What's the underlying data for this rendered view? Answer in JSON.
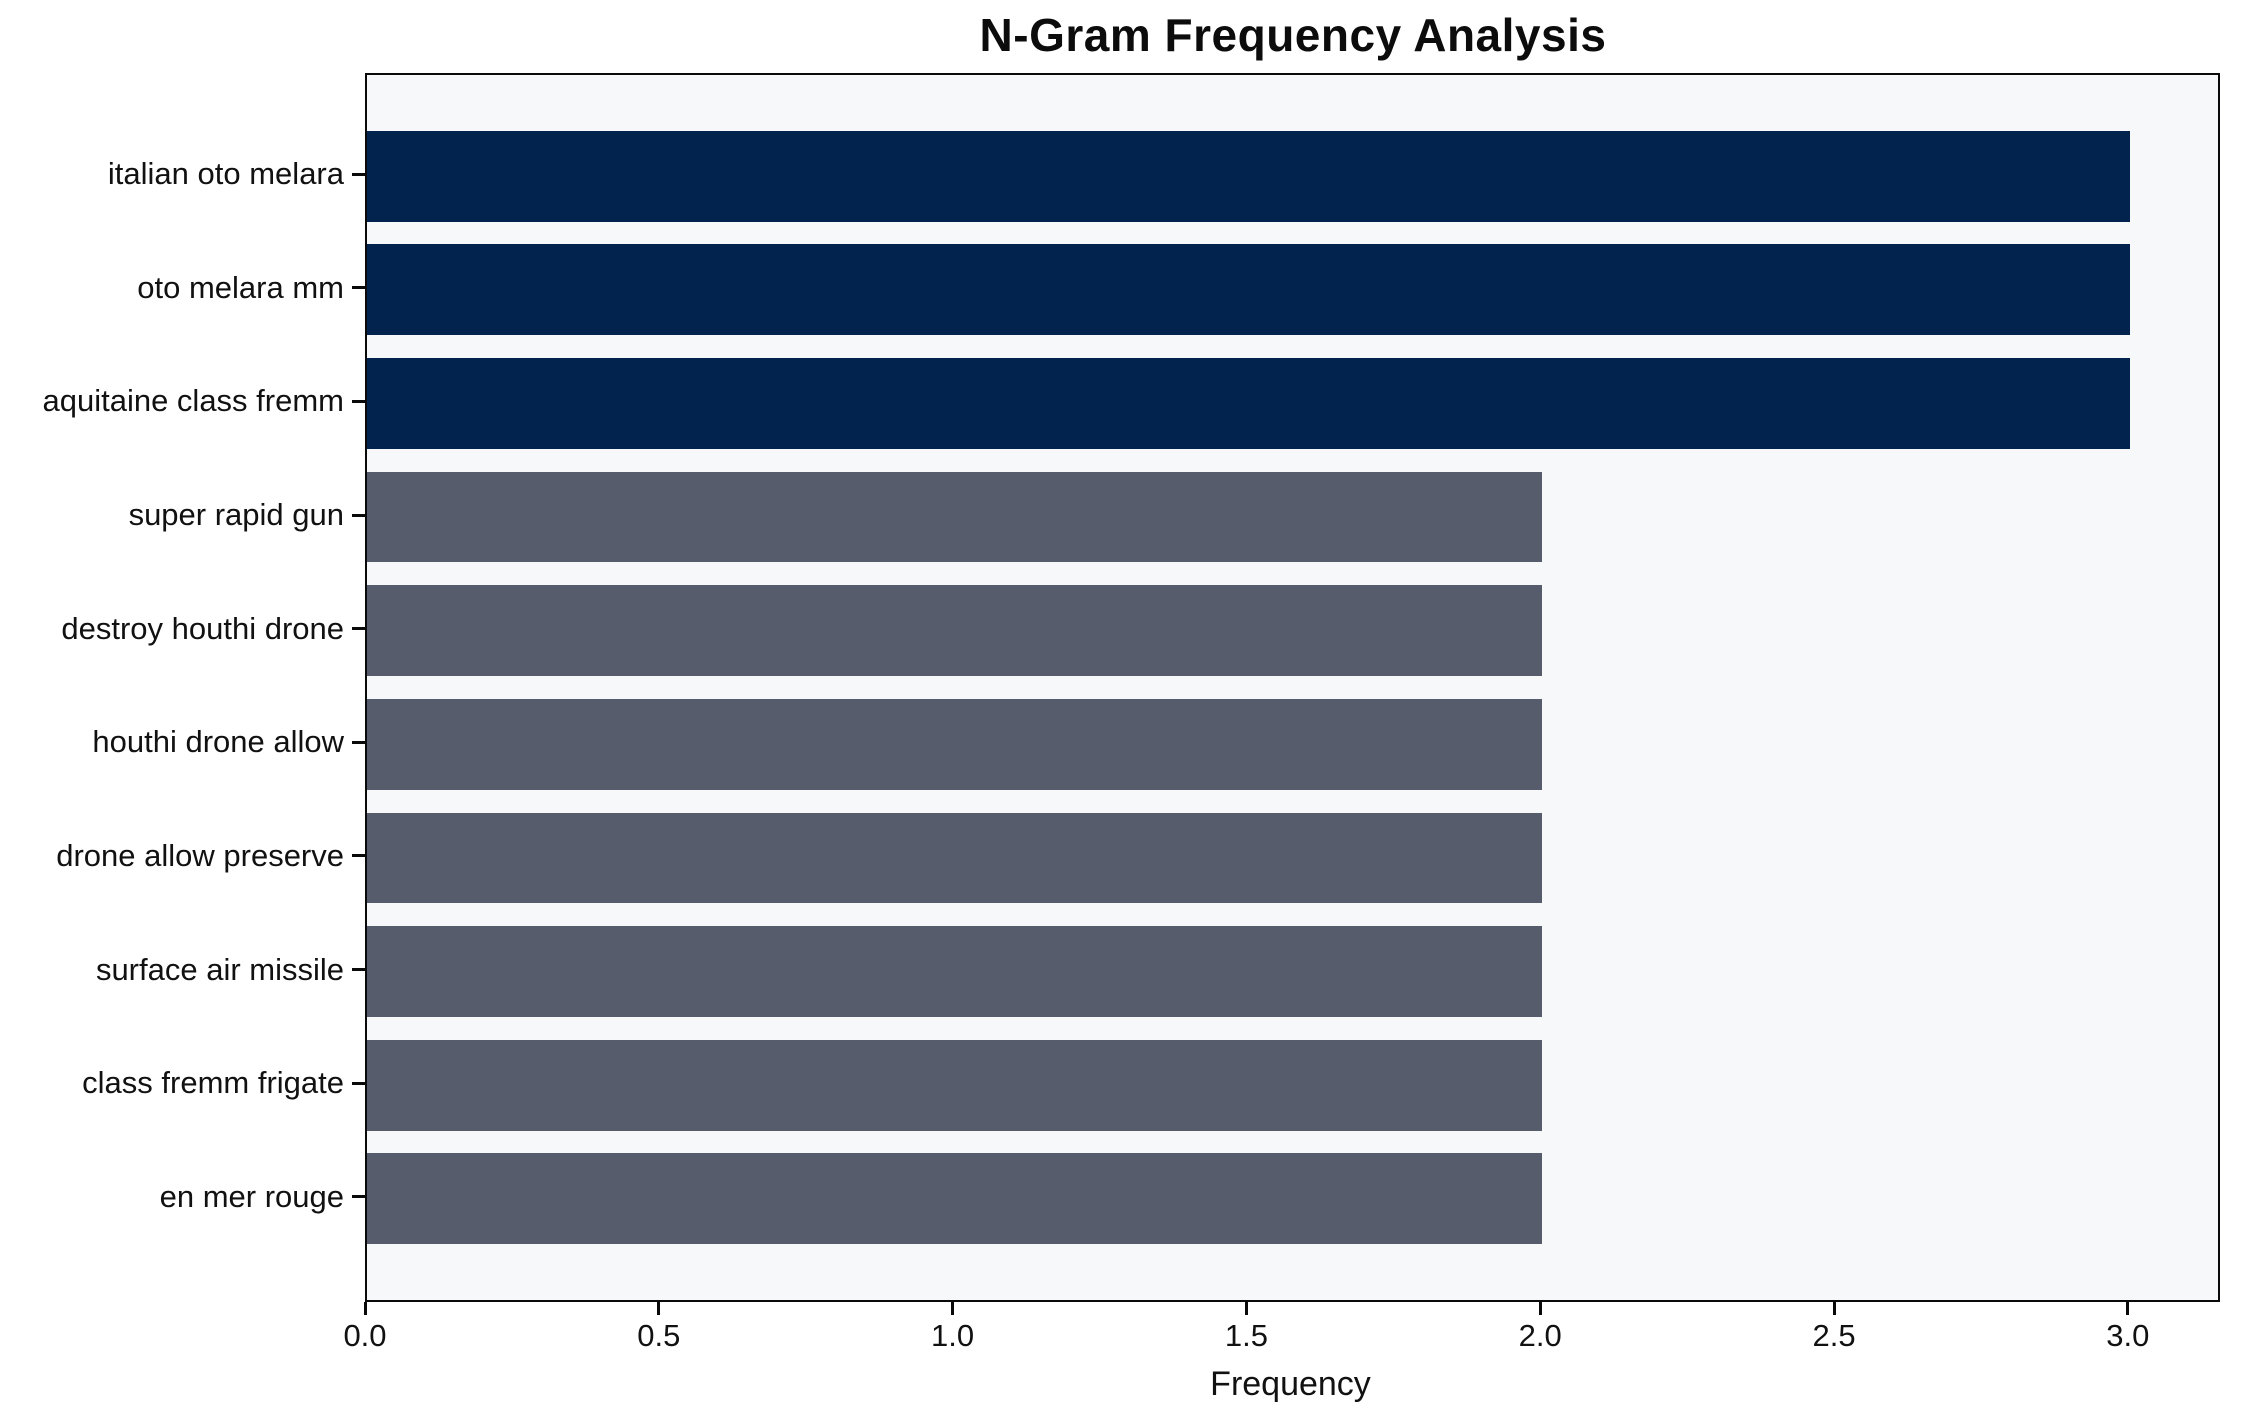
{
  "title": "N-Gram Frequency Analysis",
  "chart_data": {
    "type": "bar",
    "orientation": "horizontal",
    "title": "N-Gram Frequency Analysis",
    "xlabel": "Frequency",
    "ylabel": "",
    "categories": [
      "italian oto melara",
      "oto melara mm",
      "aquitaine class fremm",
      "super rapid gun",
      "destroy houthi drone",
      "houthi drone allow",
      "drone allow preserve",
      "surface air missile",
      "class fremm frigate",
      "en mer rouge"
    ],
    "values": [
      3,
      3,
      3,
      2,
      2,
      2,
      2,
      2,
      2,
      2
    ],
    "bar_colors": [
      "#02234e",
      "#02234e",
      "#02234e",
      "#565c6b",
      "#565c6b",
      "#565c6b",
      "#565c6b",
      "#565c6b",
      "#565c6b",
      "#565c6b"
    ],
    "xlim": [
      0,
      3.15
    ],
    "xticks": [
      {
        "value": 0.0,
        "label": "0.0"
      },
      {
        "value": 0.5,
        "label": "0.5"
      },
      {
        "value": 1.0,
        "label": "1.0"
      },
      {
        "value": 1.5,
        "label": "1.5"
      },
      {
        "value": 2.0,
        "label": "2.0"
      },
      {
        "value": 2.5,
        "label": "2.5"
      },
      {
        "value": 3.0,
        "label": "3.0"
      }
    ],
    "grid": false,
    "legend": null,
    "colors": {
      "high_value_bar": "#02234e",
      "low_value_bar": "#565c6b",
      "plot_background": "#f7f8f9",
      "page_background": "#ffffff",
      "axis": "#0a0a0a",
      "text": "#111111"
    }
  }
}
